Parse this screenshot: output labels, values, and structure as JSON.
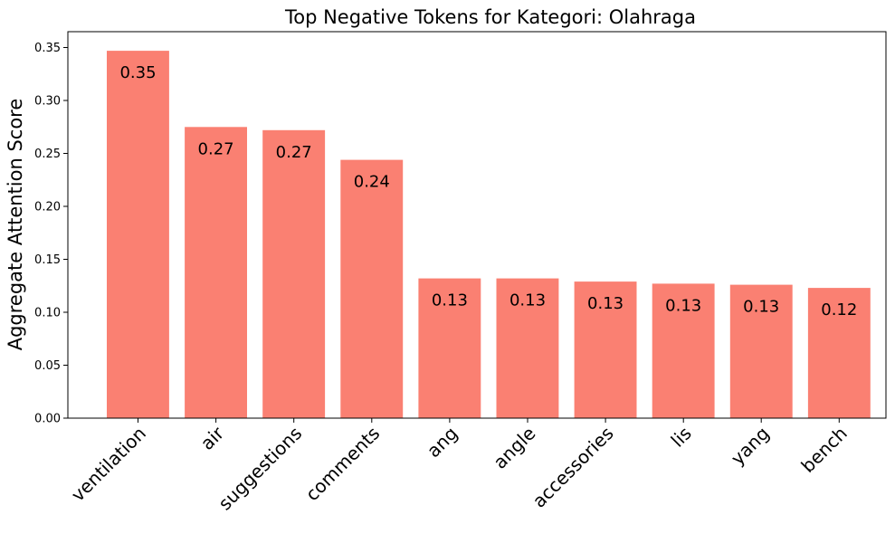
{
  "chart_data": {
    "type": "bar",
    "title": "Top Negative Tokens for Kategori: Olahraga",
    "xlabel": "",
    "ylabel": "Aggregate Attention Score",
    "categories": [
      "ventilation",
      "air",
      "suggestions",
      "comments",
      "ang",
      "angle",
      "accessories",
      "lis",
      "yang",
      "bench"
    ],
    "values": [
      0.347,
      0.275,
      0.272,
      0.244,
      0.132,
      0.132,
      0.129,
      0.127,
      0.126,
      0.123
    ],
    "data_labels": [
      "0.35",
      "0.27",
      "0.27",
      "0.24",
      "0.13",
      "0.13",
      "0.13",
      "0.13",
      "0.13",
      "0.12"
    ],
    "yticks": [
      "0.00",
      "0.05",
      "0.10",
      "0.15",
      "0.20",
      "0.25",
      "0.30",
      "0.35"
    ],
    "ylim": [
      0,
      0.365
    ],
    "bar_color": "#fa8072",
    "grid": false,
    "legend": "none"
  }
}
